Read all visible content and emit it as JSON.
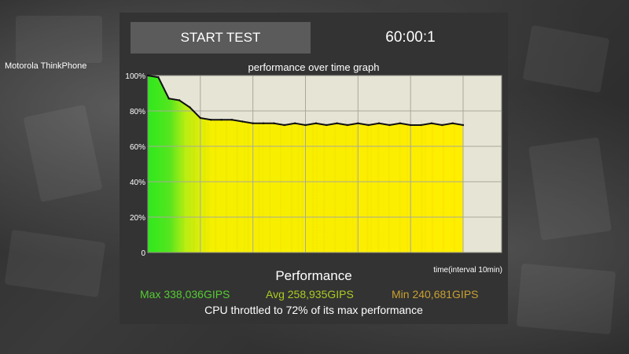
{
  "device_label": "Motorola ThinkPhone",
  "controls": {
    "start_label": "START TEST",
    "timer": "60:00:1"
  },
  "graph": {
    "title": "performance over time graph",
    "x_axis_label": "time(interval 10min)",
    "y_ticks": [
      "100%",
      "80%",
      "60%",
      "40%",
      "20%",
      "0"
    ],
    "colors": {
      "plot_background": "#e6e4d4",
      "grid": "#a9a89c",
      "line": "#111111",
      "green": "#33dd22",
      "yellow": "#ffee00"
    }
  },
  "chart_data": {
    "type": "area",
    "title": "performance over time graph",
    "xlabel": "time(interval 10min)",
    "ylabel": "",
    "ylim": [
      0,
      100
    ],
    "y_unit": "%",
    "grid": true,
    "x": [
      0,
      2,
      4,
      6,
      8,
      10,
      12,
      14,
      16,
      18,
      20,
      22,
      24,
      26,
      28,
      30,
      32,
      34,
      36,
      38,
      40,
      42,
      44,
      46,
      48,
      50,
      52,
      54,
      56,
      58,
      60
    ],
    "series": [
      {
        "values": [
          100,
          99,
          87,
          86,
          82,
          76,
          75,
          75,
          75,
          74,
          73,
          73,
          73,
          72,
          73,
          72,
          73,
          72,
          73,
          72,
          73,
          72,
          73,
          72,
          73,
          72,
          72,
          73,
          72,
          73,
          72
        ]
      }
    ]
  },
  "summary": {
    "title": "Performance",
    "max": "Max 338,036GIPS",
    "avg": "Avg 258,935GIPS",
    "min": "Min 240,681GIPS",
    "throttle_text": "CPU throttled to 72% of its max performance",
    "colors": {
      "max": "#55cc33",
      "avg": "#aacc22",
      "min": "#c8a030"
    }
  }
}
